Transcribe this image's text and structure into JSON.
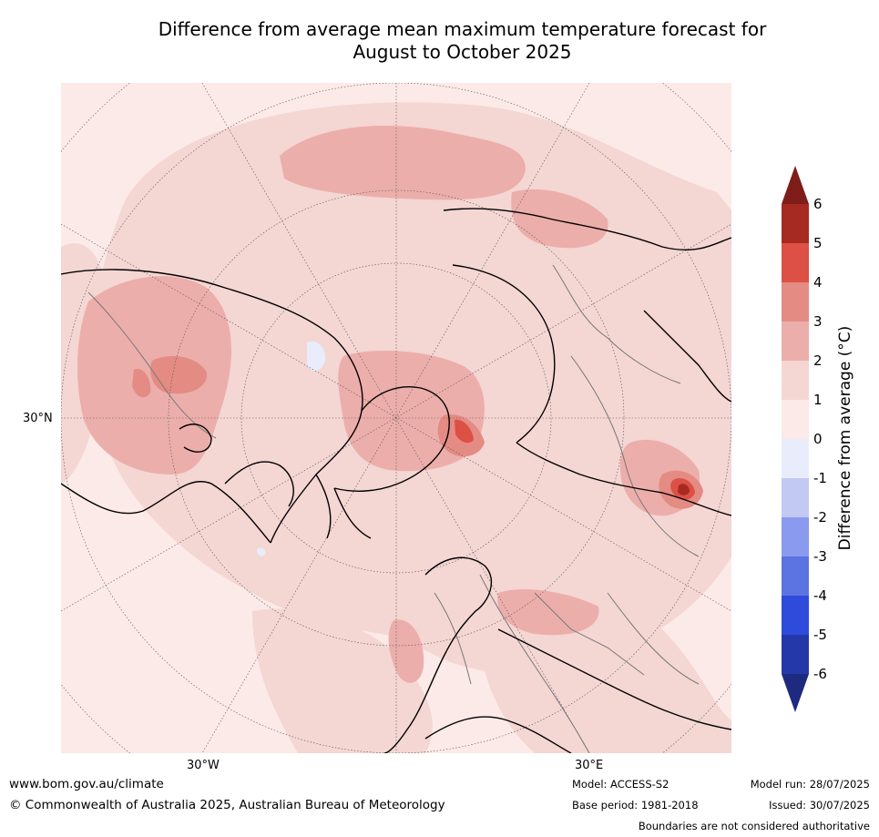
{
  "title_line1": "Difference from average mean maximum temperature forecast for",
  "title_line2": "August to October 2025",
  "map": {
    "lat_label": "30°N",
    "lon_labels": {
      "west": "30°W",
      "east": "30°E"
    },
    "colors": {
      "ocean_base": "#fbeae8",
      "band_1_2": "#f4d6d3",
      "band_2_3": "#ecaeab",
      "band_3_4": "#e48b84",
      "band_4_5": "#dc5046",
      "band_5_6": "#a62a22",
      "band_0_m1": "#e8ecfb",
      "coast": "#000000",
      "border": "#777777",
      "grid": "#555555"
    }
  },
  "colorbar": {
    "label": "Difference from average (°C)",
    "ticks": [
      "6",
      "5",
      "4",
      "3",
      "2",
      "1",
      "0",
      "-1",
      "-2",
      "-3",
      "-4",
      "-5",
      "-6"
    ],
    "colors_top_to_bottom": [
      "#a62a22",
      "#dc5046",
      "#e48b84",
      "#ecaeab",
      "#f4d6d3",
      "#fbeae8",
      "#e8ecfb",
      "#c2c9f2",
      "#8a9aee",
      "#5c73e2",
      "#2f4bdc",
      "#2538a9"
    ],
    "over_color": "#7e1d19",
    "under_color": "#1d2a80"
  },
  "footer": {
    "website": "www.bom.gov.au/climate",
    "copyright": "© Commonwealth of Australia 2025, Australian Bureau of Meteorology",
    "model": "Model: ACCESS-S2",
    "base_period": "Base period: 1981-2018",
    "model_run": "Model run: 28/07/2025",
    "issued": "Issued: 30/07/2025",
    "disclaimer": "Boundaries are not considered authoritative"
  }
}
